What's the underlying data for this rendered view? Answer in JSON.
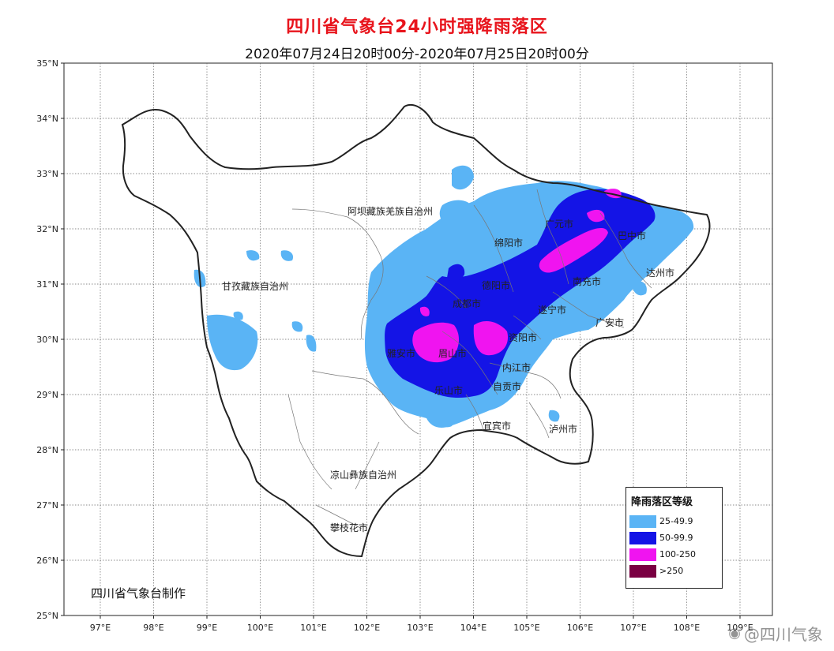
{
  "title": "四川省气象台24小时强降雨落区",
  "subtitle": "2020年07月24日20时00分-2020年07月25日20时00分",
  "axes": {
    "lat_labels": [
      "35°N",
      "34°N",
      "33°N",
      "32°N",
      "31°N",
      "30°N",
      "29°N",
      "28°N",
      "27°N",
      "26°N",
      "25°N"
    ],
    "lon_labels": [
      "97°E",
      "98°E",
      "99°E",
      "100°E",
      "101°E",
      "102°E",
      "103°E",
      "104°E",
      "105°E",
      "106°E",
      "107°E",
      "108°E",
      "109°E"
    ]
  },
  "regions": [
    {
      "name": "阿坝藏族羌族自治州"
    },
    {
      "name": "甘孜藏族自治州"
    },
    {
      "name": "凉山彝族自治州"
    }
  ],
  "cities": [
    {
      "name": "广元市"
    },
    {
      "name": "巴中市"
    },
    {
      "name": "绵阳市"
    },
    {
      "name": "达州市"
    },
    {
      "name": "南充市"
    },
    {
      "name": "德阳市"
    },
    {
      "name": "成都市"
    },
    {
      "name": "遂宁市"
    },
    {
      "name": "广安市"
    },
    {
      "name": "雅安市"
    },
    {
      "name": "眉山市"
    },
    {
      "name": "资阳市"
    },
    {
      "name": "内江市"
    },
    {
      "name": "自贡市"
    },
    {
      "name": "乐山市"
    },
    {
      "name": "宜宾市"
    },
    {
      "name": "泸州市"
    },
    {
      "name": "攀枝花市"
    }
  ],
  "legend": {
    "title": "降雨落区等级",
    "items": [
      {
        "label": "25-49.9",
        "color": "#5ab4f5"
      },
      {
        "label": "50-99.9",
        "color": "#1414e6"
      },
      {
        "label": "100-250",
        "color": "#f014f0"
      },
      {
        "label": ">250",
        "color": "#7a0042"
      }
    ]
  },
  "credit": "四川省气象台制作",
  "watermark": "@四川气象",
  "colors": {
    "title": "#e8141c",
    "border": "#222222",
    "grid": "#666666"
  }
}
